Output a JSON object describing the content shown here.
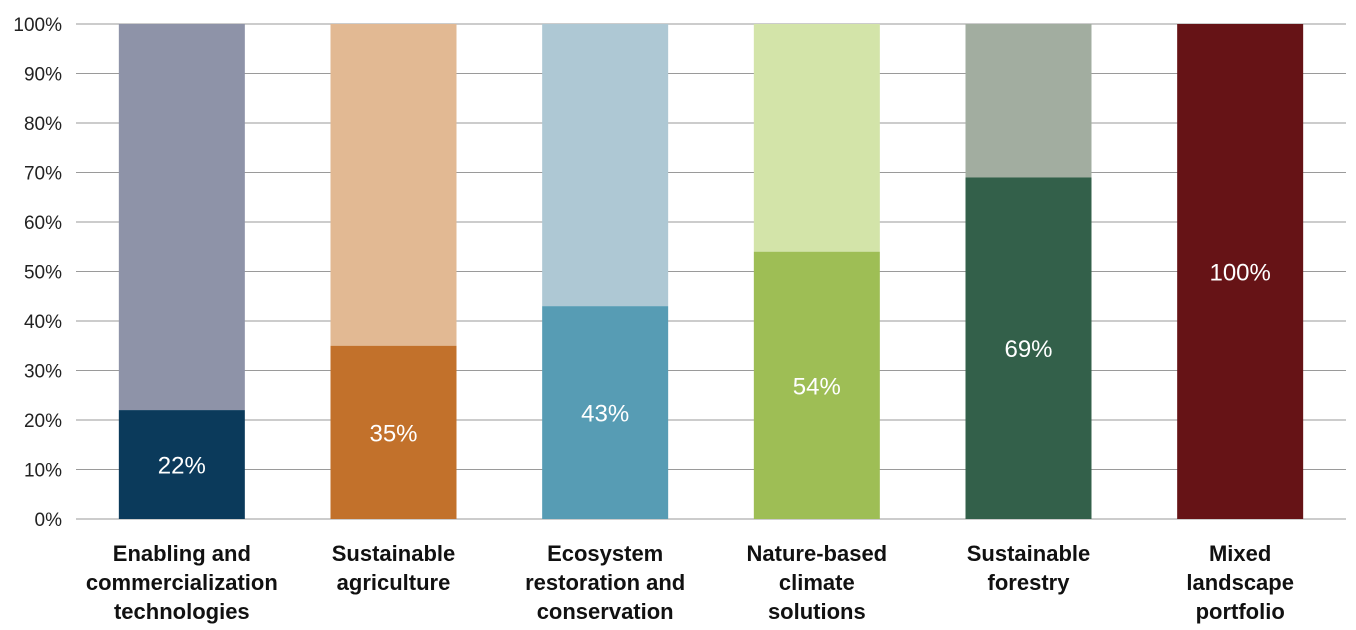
{
  "chart_data": {
    "type": "bar",
    "stacked": true,
    "categories": [
      [
        "Enabling and",
        "commercialization",
        "technologies"
      ],
      [
        "Sustainable",
        "agriculture"
      ],
      [
        "Ecosystem",
        "restoration and",
        "conservation"
      ],
      [
        "Nature-based",
        "climate",
        "solutions"
      ],
      [
        "Sustainable",
        "forestry"
      ],
      [
        "Mixed",
        "landscape",
        "portfolio"
      ]
    ],
    "values": [
      22,
      35,
      43,
      54,
      69,
      100
    ],
    "data_labels": [
      "22%",
      "35%",
      "43%",
      "54%",
      "69%",
      "100%"
    ],
    "remainder_to": 100,
    "ylim": [
      0,
      100
    ],
    "yticks": [
      0,
      10,
      20,
      30,
      40,
      50,
      60,
      70,
      80,
      90,
      100
    ],
    "ytick_labels": [
      "0%",
      "10%",
      "20%",
      "30%",
      "40%",
      "50%",
      "60%",
      "70%",
      "80%",
      "90%",
      "100%"
    ],
    "grid": true,
    "legend": "none",
    "title": "",
    "xlabel": "",
    "ylabel": "",
    "colors": {
      "value": [
        "#0b3a5b",
        "#c2712b",
        "#579cb4",
        "#9ebe55",
        "#33604a",
        "#661316"
      ],
      "remainder": [
        "#8e93a8",
        "#e2b993",
        "#aec8d4",
        "#d3e4a9",
        "#a2ada0",
        "#661316"
      ]
    }
  }
}
